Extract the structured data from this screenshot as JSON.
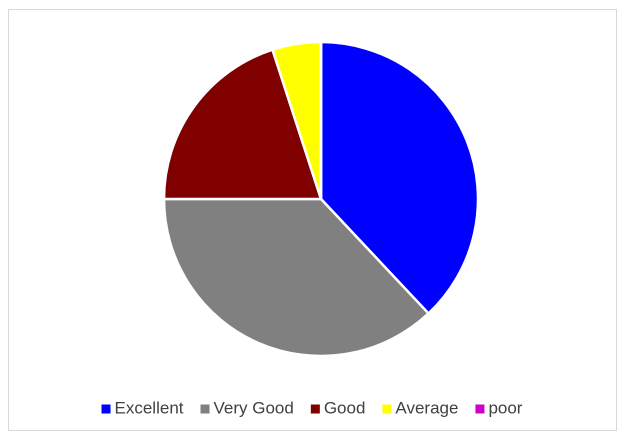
{
  "chart_data": {
    "type": "pie",
    "categories": [
      "Excellent",
      "Very Good",
      "Good",
      "Average",
      "poor"
    ],
    "values": [
      38,
      37,
      20,
      5,
      0
    ],
    "colors": [
      "#0000ff",
      "#808080",
      "#800000",
      "#ffff00",
      "#cc00cc"
    ],
    "legend": "bottom"
  }
}
